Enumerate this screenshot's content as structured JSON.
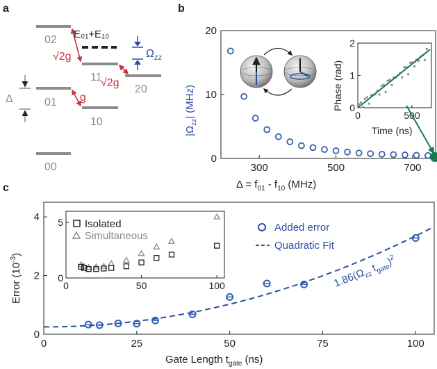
{
  "colors": {
    "gray_level": "#8c8c8c",
    "red": "#c8323c",
    "blue": "#2c4f9e",
    "blue_marker": "#3660b0",
    "green": "#1a7a4c",
    "axis": "#222222",
    "inset_gray": "#8a8a8a"
  },
  "panel_a": {
    "label": "a",
    "levels": [
      "02",
      "11",
      "20",
      "01",
      "10",
      "00"
    ],
    "delta_symbol": "Δ",
    "coupling_top_left": "√2g",
    "coupling_mid_right": "√2g",
    "coupling_bottom": "g",
    "sum_energy_label": "E₀₁+E₁₀",
    "omega_label": "Ω",
    "omega_sub": "zz"
  },
  "panel_b": {
    "label": "b",
    "xlabel_main": "Δ = f",
    "xlabel_sub1": "01",
    "xlabel_mid": " - f",
    "xlabel_sub2": "10",
    "xlabel_end": " (MHz)",
    "ylabel_pre": "|Ω",
    "ylabel_sub": "zz",
    "ylabel_post": "| (MHz)",
    "xticks": [
      "300",
      "500",
      "700"
    ],
    "yticks": [
      "0",
      "10",
      "20"
    ],
    "inset_xlabel": "Time (ns)",
    "inset_ylabel": "Phase (rad)",
    "inset_xticks": [
      "0",
      "500"
    ],
    "inset_yticks": [
      "0",
      "1",
      "2"
    ]
  },
  "panel_c": {
    "label": "c",
    "xlabel_main": "Gate Length t",
    "xlabel_sub": "gate",
    "xlabel_end": " (ns)",
    "ylabel_main": "Error (10",
    "ylabel_sup": "-3",
    "ylabel_end": ")",
    "xticks": [
      "0",
      "25",
      "50",
      "75",
      "100"
    ],
    "yticks": [
      "0",
      "2",
      "4"
    ],
    "legend_added": "Added error",
    "legend_fit": "Quadratic Fit",
    "fit_annot_pre": "1.86(Ω",
    "fit_annot_sub1": "zz",
    "fit_annot_mid": " t",
    "fit_annot_sub2": "gate",
    "fit_annot_post": ")",
    "fit_annot_sup": "2",
    "inset_legend_isolated": "Isolated",
    "inset_legend_simul": "Simultaneous",
    "inset_xticks": [
      "0",
      "50",
      "100"
    ],
    "inset_yticks": [
      "0",
      "5"
    ]
  },
  "chart_data": [
    {
      "type": "scatter",
      "panel": "b",
      "xlabel": "Δ = f01 - f10 (MHz)",
      "ylabel": "|Ωzz| (MHz)",
      "xlim": [
        200,
        760
      ],
      "ylim": [
        0,
        20
      ],
      "x": [
        225,
        260,
        290,
        320,
        350,
        380,
        410,
        440,
        470,
        500,
        530,
        560,
        590,
        620,
        650,
        680,
        710,
        740
      ],
      "y": [
        16.8,
        9.7,
        6.3,
        4.5,
        3.4,
        2.6,
        2.0,
        1.7,
        1.4,
        1.2,
        1.0,
        0.85,
        0.75,
        0.65,
        0.6,
        0.55,
        0.5,
        0.45
      ]
    },
    {
      "type": "scatter",
      "panel": "b-inset",
      "xlabel": "Time (ns)",
      "ylabel": "Phase (rad)",
      "xlim": [
        0,
        680
      ],
      "ylim": [
        0,
        2
      ],
      "fit_slope": 0.00265
    },
    {
      "type": "scatter",
      "panel": "c",
      "xlabel": "Gate Length t_gate (ns)",
      "ylabel": "Error (10^-3)",
      "xlim": [
        0,
        105
      ],
      "ylim": [
        0,
        4.5
      ],
      "series": [
        {
          "name": "Added error",
          "x": [
            12,
            15,
            20,
            25,
            30,
            40,
            50,
            60,
            70,
            100
          ],
          "y": [
            0.33,
            0.31,
            0.37,
            0.36,
            0.47,
            0.68,
            1.27,
            1.73,
            1.7,
            3.28
          ]
        },
        {
          "name": "Quadratic Fit",
          "fit": "quadratic",
          "coeffs": [
            0.25,
            0,
            0.00031
          ]
        }
      ]
    },
    {
      "type": "scatter",
      "panel": "c-inset",
      "xlim": [
        0,
        105
      ],
      "ylim": [
        0,
        6
      ],
      "series": [
        {
          "name": "Isolated",
          "x": [
            10,
            12,
            15,
            20,
            25,
            30,
            40,
            50,
            60,
            70,
            100
          ],
          "y": [
            1.0,
            0.9,
            0.8,
            0.8,
            0.85,
            0.9,
            1.05,
            1.4,
            1.8,
            2.1,
            2.9
          ]
        },
        {
          "name": "Simultaneous",
          "x": [
            10,
            12,
            15,
            20,
            25,
            30,
            40,
            50,
            60,
            70,
            100
          ],
          "y": [
            1.2,
            1.05,
            0.95,
            1.0,
            1.05,
            1.3,
            1.6,
            2.2,
            2.8,
            3.3,
            5.5
          ]
        }
      ]
    }
  ]
}
